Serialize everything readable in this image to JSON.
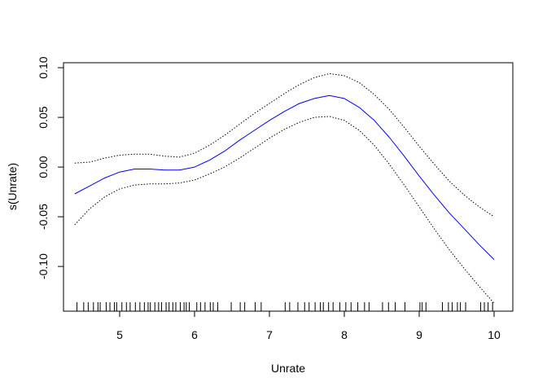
{
  "chart_data": {
    "type": "line",
    "title": "",
    "xlabel": "Unrate",
    "ylabel": "s(Unrate)",
    "xlim": [
      4.25,
      10.25
    ],
    "ylim": [
      -0.145,
      0.105
    ],
    "xticks": [
      5,
      6,
      7,
      8,
      9,
      10
    ],
    "yticks": [
      -0.1,
      -0.05,
      0.0,
      0.05,
      0.1
    ],
    "xtick_labels": [
      "5",
      "6",
      "7",
      "8",
      "9",
      "10"
    ],
    "ytick_labels": [
      "-0.10",
      "-0.05",
      "0.00",
      "0.05",
      "0.10"
    ],
    "grid": false,
    "colors": {
      "fit": "#0000ff",
      "band": "#000000",
      "axis": "#000000"
    },
    "series": [
      {
        "role": "fit",
        "style": "solid",
        "x": [
          4.4,
          4.6,
          4.8,
          5.0,
          5.2,
          5.4,
          5.6,
          5.8,
          6.0,
          6.2,
          6.4,
          6.6,
          6.8,
          7.0,
          7.2,
          7.4,
          7.6,
          7.8,
          8.0,
          8.2,
          8.4,
          8.6,
          8.8,
          9.0,
          9.2,
          9.4,
          9.6,
          9.8,
          10.0
        ],
        "y": [
          -0.027,
          -0.019,
          -0.011,
          -0.005,
          -0.002,
          -0.002,
          -0.003,
          -0.003,
          0.0,
          0.007,
          0.016,
          0.027,
          0.037,
          0.047,
          0.056,
          0.064,
          0.069,
          0.072,
          0.069,
          0.06,
          0.047,
          0.03,
          0.011,
          -0.009,
          -0.028,
          -0.046,
          -0.062,
          -0.078,
          -0.093
        ]
      },
      {
        "role": "upper",
        "style": "dotted",
        "x": [
          4.4,
          4.6,
          4.8,
          5.0,
          5.2,
          5.4,
          5.6,
          5.8,
          6.0,
          6.2,
          6.4,
          6.6,
          6.8,
          7.0,
          7.2,
          7.4,
          7.6,
          7.8,
          8.0,
          8.2,
          8.4,
          8.6,
          8.8,
          9.0,
          9.2,
          9.4,
          9.6,
          9.8,
          10.0
        ],
        "y": [
          0.004,
          0.005,
          0.009,
          0.012,
          0.013,
          0.013,
          0.011,
          0.01,
          0.014,
          0.022,
          0.032,
          0.043,
          0.054,
          0.064,
          0.074,
          0.083,
          0.09,
          0.094,
          0.092,
          0.085,
          0.073,
          0.058,
          0.04,
          0.021,
          0.003,
          -0.014,
          -0.028,
          -0.04,
          -0.05
        ]
      },
      {
        "role": "lower",
        "style": "dotted",
        "x": [
          4.4,
          4.6,
          4.8,
          5.0,
          5.2,
          5.4,
          5.6,
          5.8,
          6.0,
          6.2,
          6.4,
          6.6,
          6.8,
          7.0,
          7.2,
          7.4,
          7.6,
          7.8,
          8.0,
          8.2,
          8.4,
          8.6,
          8.8,
          9.0,
          9.2,
          9.4,
          9.6,
          9.8,
          10.0
        ],
        "y": [
          -0.058,
          -0.042,
          -0.03,
          -0.022,
          -0.018,
          -0.017,
          -0.017,
          -0.016,
          -0.013,
          -0.007,
          0.0,
          0.009,
          0.019,
          0.029,
          0.038,
          0.045,
          0.05,
          0.051,
          0.047,
          0.037,
          0.022,
          0.003,
          -0.018,
          -0.04,
          -0.062,
          -0.083,
          -0.102,
          -0.12,
          -0.137
        ]
      }
    ],
    "rug": [
      4.43,
      4.52,
      4.58,
      4.65,
      4.71,
      4.74,
      4.82,
      4.87,
      4.93,
      4.96,
      5.03,
      5.09,
      5.14,
      5.21,
      5.27,
      5.33,
      5.38,
      5.41,
      5.47,
      5.52,
      5.56,
      5.62,
      5.66,
      5.71,
      5.75,
      5.81,
      5.86,
      5.89,
      5.93,
      6.03,
      6.08,
      6.14,
      6.21,
      6.25,
      6.31,
      6.49,
      6.61,
      6.67,
      6.81,
      6.89,
      7.21,
      7.27,
      7.38,
      7.47,
      7.53,
      7.61,
      7.68,
      7.72,
      7.79,
      7.85,
      7.94,
      8.02,
      8.09,
      8.18,
      8.27,
      8.33,
      8.51,
      8.59,
      8.68,
      8.81,
      9.01,
      9.04,
      9.09,
      9.31,
      9.39,
      9.44,
      9.51,
      9.55,
      9.62,
      9.82,
      9.87,
      9.92,
      9.98
    ]
  }
}
